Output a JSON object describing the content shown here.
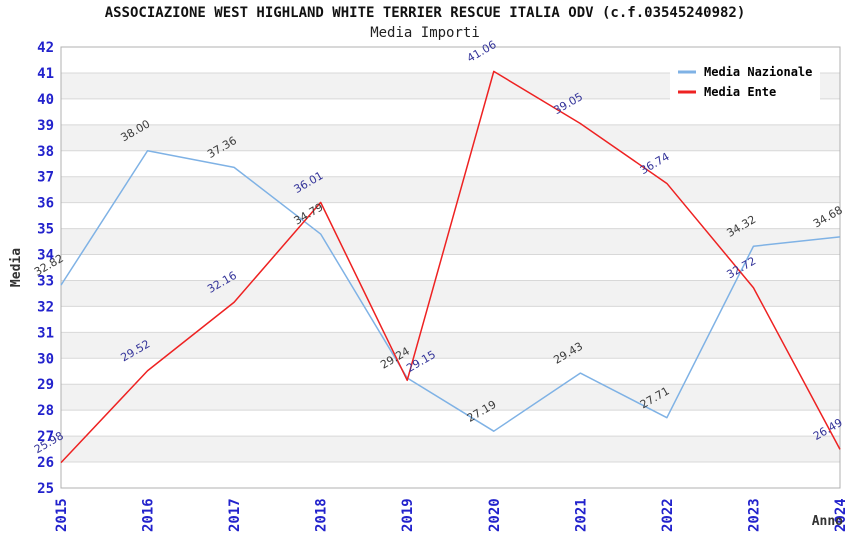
{
  "header": {
    "title": "ASSOCIAZIONE WEST HIGHLAND WHITE TERRIER RESCUE ITALIA ODV (c.f.03545240982)",
    "subtitle": "Media Importi"
  },
  "chart_data": {
    "type": "line",
    "x": [
      "2015",
      "2016",
      "2017",
      "2018",
      "2019",
      "2020",
      "2021",
      "2022",
      "2023",
      "2024"
    ],
    "xlabel": "Anno",
    "ylabel": "Media",
    "ylim": [
      25,
      42
    ],
    "ytick_step": 1,
    "grid": "horizontal",
    "banded_background": true,
    "legend_position": "top-right",
    "series": [
      {
        "name": "Media Nazionale",
        "color": "#7fb2e5",
        "label_color": "#3b3b3b",
        "values": [
          32.82,
          38.0,
          37.36,
          34.79,
          29.24,
          27.19,
          29.43,
          27.71,
          34.32,
          34.68
        ]
      },
      {
        "name": "Media Ente",
        "color": "#ee2222",
        "label_color": "#333399",
        "values": [
          25.98,
          29.52,
          32.16,
          36.01,
          29.15,
          41.06,
          39.05,
          36.74,
          32.72,
          26.49
        ]
      }
    ],
    "label_offset_overrides": {
      "1": {
        "4": [
          2,
          -8
        ]
      }
    }
  },
  "style": {
    "band": "#f2f2f2",
    "grid": "#d8d8d8",
    "border": "#b0b0b0",
    "tick_label_color": "#2222cc",
    "axis_label_color": "#333333",
    "legend_text_color": "#000000",
    "legend_background": "#ffffff"
  }
}
